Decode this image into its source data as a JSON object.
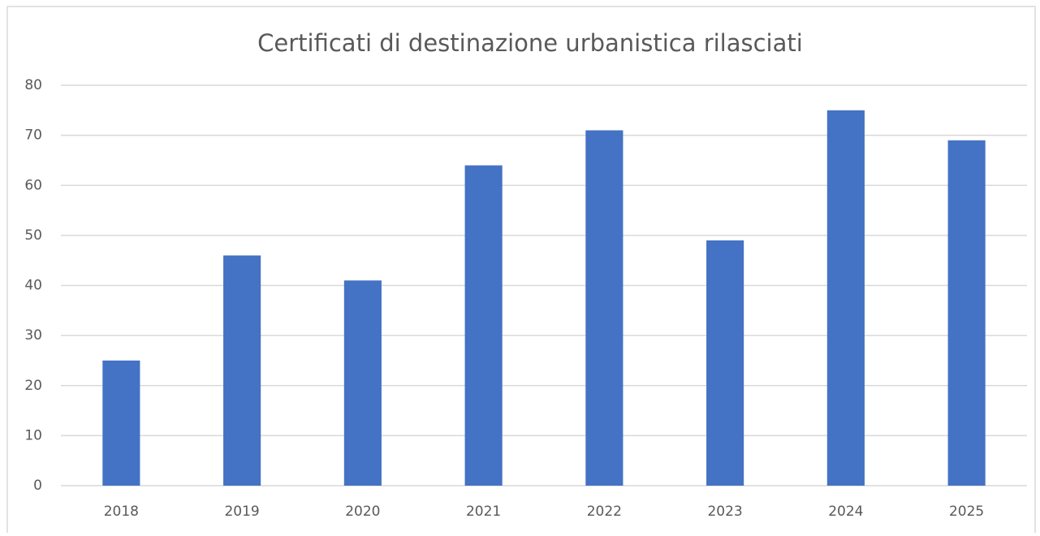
{
  "chart_data": {
    "type": "bar",
    "title": "Certificati di destinazione urbanistica rilasciati",
    "categories": [
      "2018",
      "2019",
      "2020",
      "2021",
      "2022",
      "2023",
      "2024",
      "2025"
    ],
    "values": [
      25,
      46,
      41,
      64,
      71,
      49,
      75,
      69
    ],
    "color": "#4472c4",
    "ylim": [
      0,
      80
    ],
    "yticks": [
      0,
      10,
      20,
      30,
      40,
      50,
      60,
      70,
      80
    ],
    "grid": true
  }
}
